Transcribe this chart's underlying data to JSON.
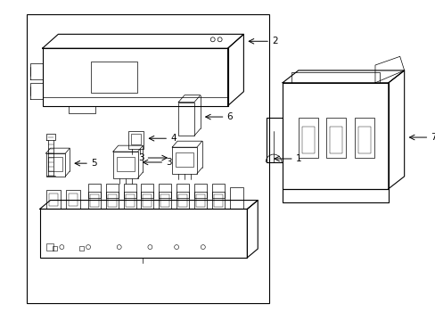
{
  "bg_color": "#ffffff",
  "line_color": "#000000",
  "lw": 0.8,
  "tlw": 0.5,
  "fig_width": 4.89,
  "fig_height": 3.6,
  "dpi": 100
}
